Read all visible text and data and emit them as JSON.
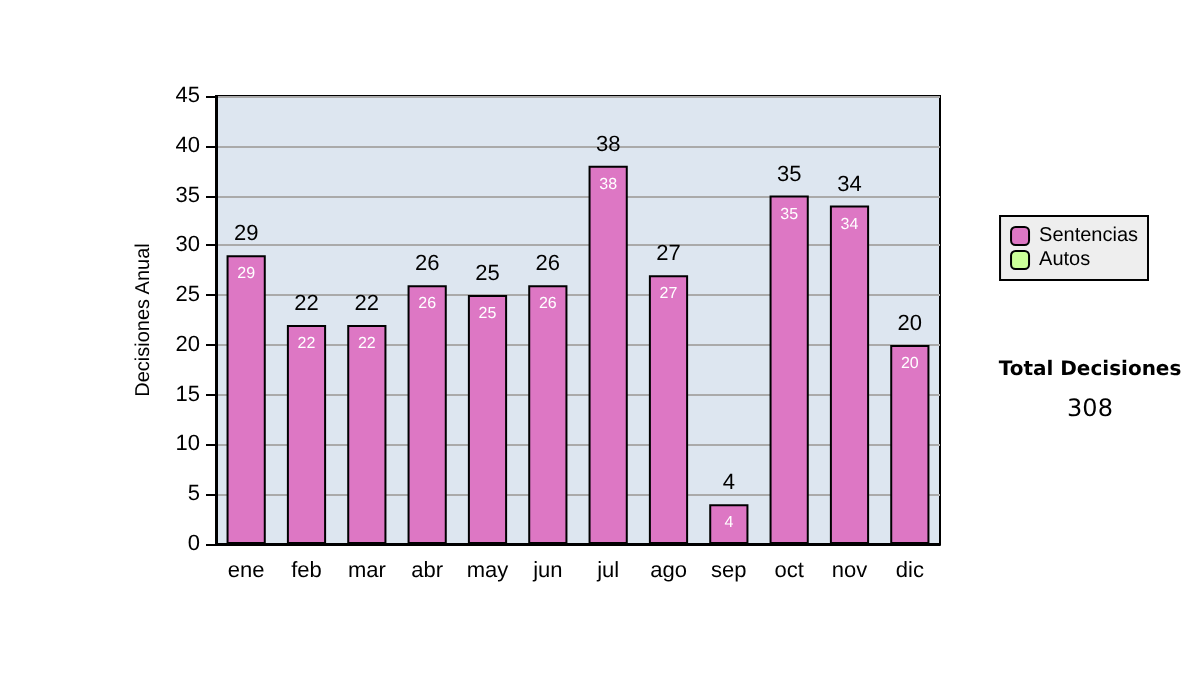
{
  "chart_data": {
    "type": "bar",
    "ylabel": "Decisiones Anual",
    "categories": [
      "ene",
      "feb",
      "mar",
      "abr",
      "may",
      "jun",
      "jul",
      "ago",
      "sep",
      "oct",
      "nov",
      "dic"
    ],
    "series": [
      {
        "name": "Sentencias",
        "color": "#dd77c4",
        "values": [
          29,
          22,
          22,
          26,
          25,
          26,
          38,
          27,
          4,
          35,
          34,
          20
        ],
        "value_labels": [
          "29",
          "22",
          "22",
          "26",
          "25",
          "26",
          "38",
          "27",
          "4",
          "35",
          "34",
          "20"
        ]
      },
      {
        "name": "Autos",
        "color": "#ccff99",
        "values": [
          0,
          0,
          0,
          0,
          0,
          0,
          0,
          0,
          0,
          0,
          0,
          0
        ]
      }
    ],
    "stacked": true,
    "totals": [
      "29",
      "22",
      "22",
      "26",
      "25",
      "26",
      "38",
      "27",
      "4",
      "35",
      "34",
      "20"
    ],
    "ylim": [
      0,
      45
    ],
    "yticks": [
      0,
      5,
      10,
      15,
      20,
      25,
      30,
      35,
      40,
      45
    ],
    "grid": "y",
    "legend": "right",
    "annotations": [
      "Total Decisiones",
      "308"
    ]
  }
}
